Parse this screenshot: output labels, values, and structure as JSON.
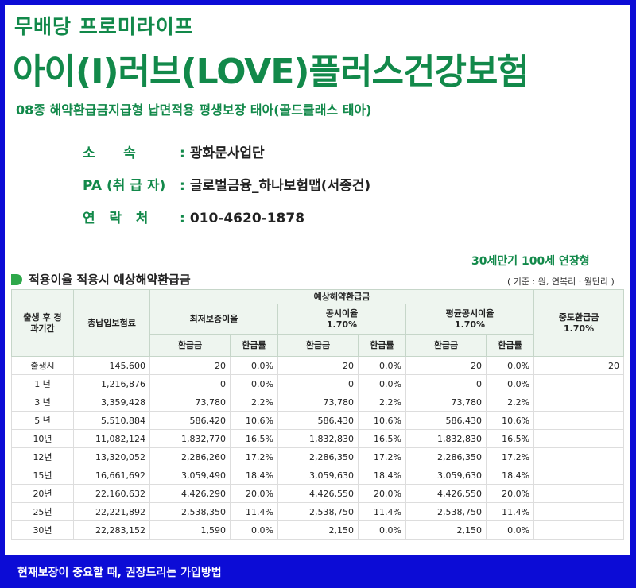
{
  "header": {
    "subtitle": "무배당 프로미라이프",
    "title": "아이(I)러브(LOVE)플러스건강보험",
    "description": "08종 해약환급금지급형 납면적용 평생보장  태아(골드클래스 태아)"
  },
  "info": {
    "affiliation_label": "소      속",
    "affiliation_value": "광화문사업단",
    "agent_label": "PA (취 급 자)",
    "agent_value": "글로벌금융_하나보험맵(서종건)",
    "contact_label": "연   락   처",
    "contact_value": "010-4620-1878"
  },
  "colon": ":",
  "plan_note": "30세만기 100세 연장형",
  "section": {
    "title": "적용이율 적용시 예상해약환급금",
    "basis": "( 기준 : 원, 연복리 · 월단리 )"
  },
  "table": {
    "h_period": "출생 후 경과기간",
    "h_premium": "총납입보험료",
    "h_expected": "예상해약환급금",
    "h_min": "최저보증이율",
    "h_pub": "공시이율",
    "h_pub_rate": "1.70%",
    "h_avg": "평균공시이율",
    "h_avg_rate": "1.70%",
    "h_mid": "중도환급금",
    "h_mid_rate": "1.70%",
    "h_refund": "환급금",
    "h_ratio": "환급률",
    "rows": [
      {
        "period": "출생시",
        "premium": "145,600",
        "min_r": "20",
        "min_p": "0.0%",
        "pub_r": "20",
        "pub_p": "0.0%",
        "avg_r": "20",
        "avg_p": "0.0%",
        "mid": "20"
      },
      {
        "period": "1 년",
        "premium": "1,216,876",
        "min_r": "0",
        "min_p": "0.0%",
        "pub_r": "0",
        "pub_p": "0.0%",
        "avg_r": "0",
        "avg_p": "0.0%",
        "mid": ""
      },
      {
        "period": "3 년",
        "premium": "3,359,428",
        "min_r": "73,780",
        "min_p": "2.2%",
        "pub_r": "73,780",
        "pub_p": "2.2%",
        "avg_r": "73,780",
        "avg_p": "2.2%",
        "mid": ""
      },
      {
        "period": "5 년",
        "premium": "5,510,884",
        "min_r": "586,420",
        "min_p": "10.6%",
        "pub_r": "586,430",
        "pub_p": "10.6%",
        "avg_r": "586,430",
        "avg_p": "10.6%",
        "mid": ""
      },
      {
        "period": "10년",
        "premium": "11,082,124",
        "min_r": "1,832,770",
        "min_p": "16.5%",
        "pub_r": "1,832,830",
        "pub_p": "16.5%",
        "avg_r": "1,832,830",
        "avg_p": "16.5%",
        "mid": ""
      },
      {
        "period": "12년",
        "premium": "13,320,052",
        "min_r": "2,286,260",
        "min_p": "17.2%",
        "pub_r": "2,286,350",
        "pub_p": "17.2%",
        "avg_r": "2,286,350",
        "avg_p": "17.2%",
        "mid": ""
      },
      {
        "period": "15년",
        "premium": "16,661,692",
        "min_r": "3,059,490",
        "min_p": "18.4%",
        "pub_r": "3,059,630",
        "pub_p": "18.4%",
        "avg_r": "3,059,630",
        "avg_p": "18.4%",
        "mid": ""
      },
      {
        "period": "20년",
        "premium": "22,160,632",
        "min_r": "4,426,290",
        "min_p": "20.0%",
        "pub_r": "4,426,550",
        "pub_p": "20.0%",
        "avg_r": "4,426,550",
        "avg_p": "20.0%",
        "mid": ""
      },
      {
        "period": "25년",
        "premium": "22,221,892",
        "min_r": "2,538,350",
        "min_p": "11.4%",
        "pub_r": "2,538,750",
        "pub_p": "11.4%",
        "avg_r": "2,538,750",
        "avg_p": "11.4%",
        "mid": ""
      },
      {
        "period": "30년",
        "premium": "22,283,152",
        "min_r": "1,590",
        "min_p": "0.0%",
        "pub_r": "2,150",
        "pub_p": "0.0%",
        "avg_r": "2,150",
        "avg_p": "0.0%",
        "mid": ""
      }
    ]
  },
  "footer": "현재보장이 중요할 때, 권장드리는 가입방법"
}
